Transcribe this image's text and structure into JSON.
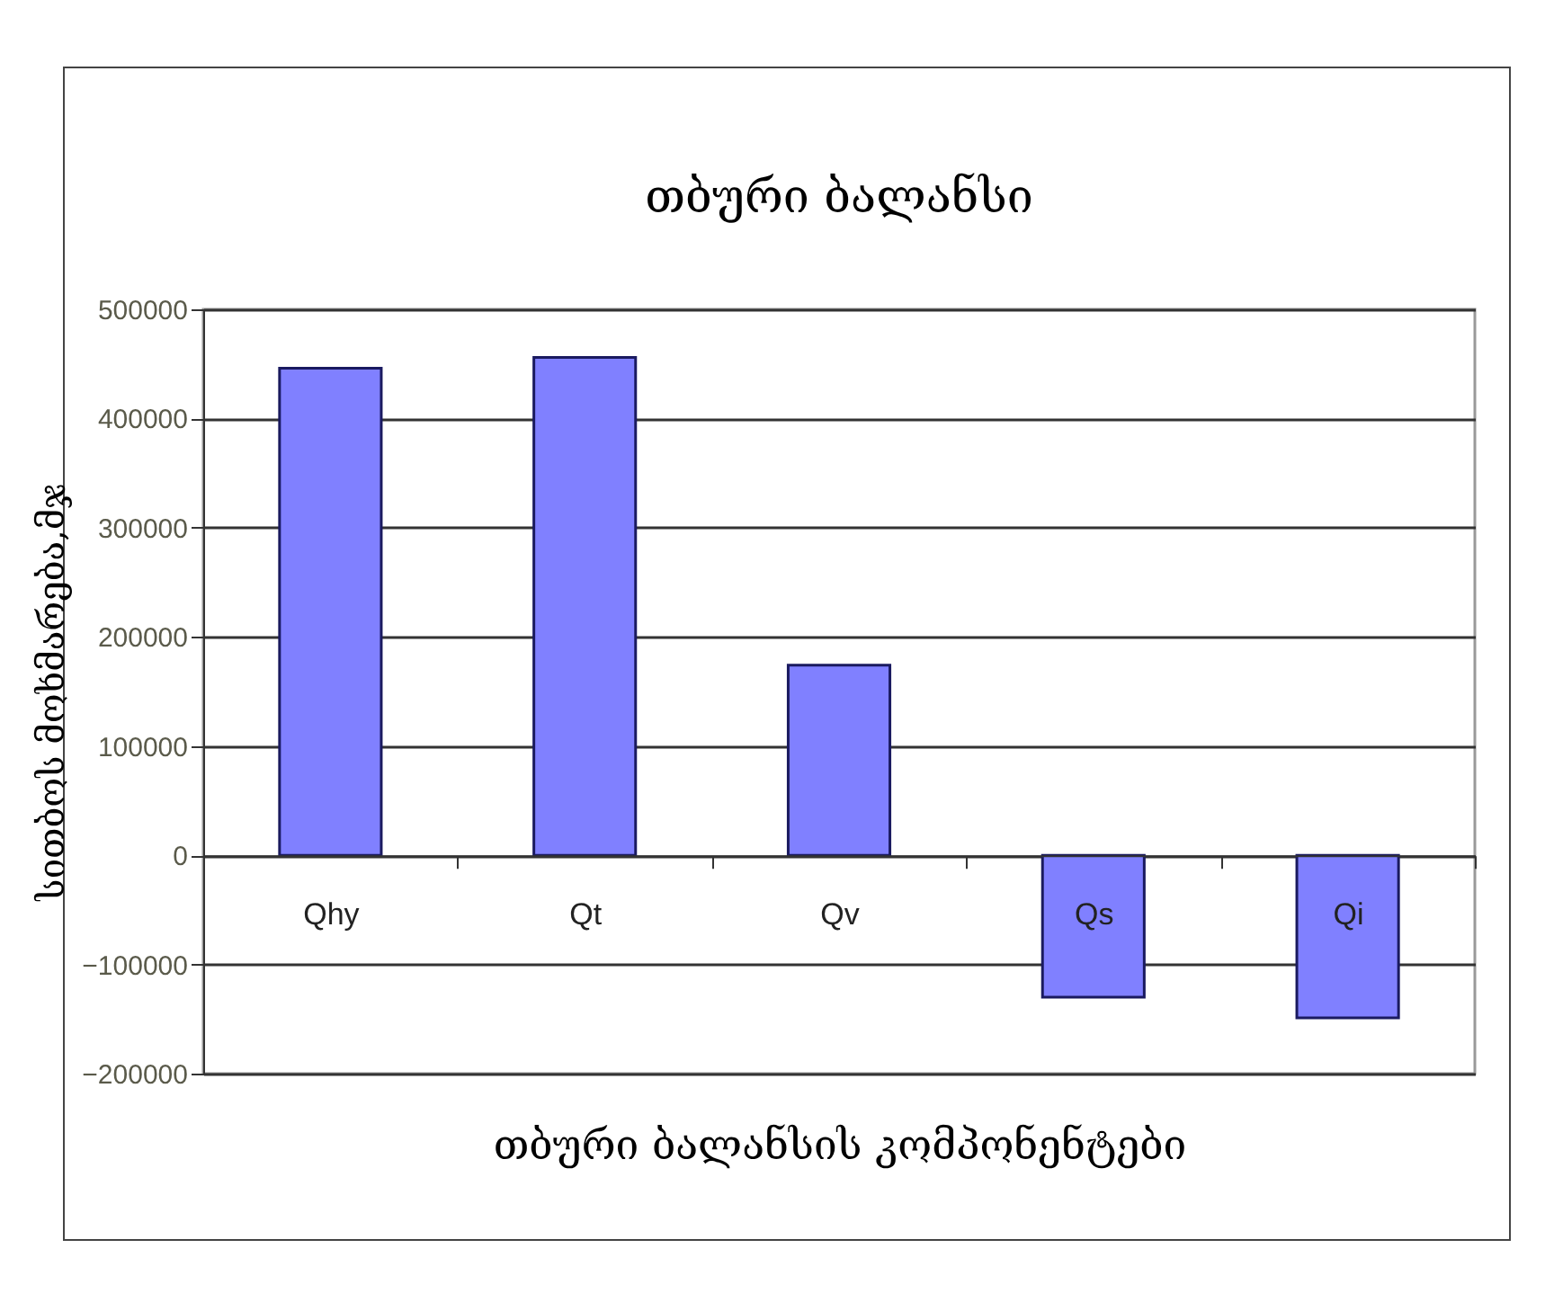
{
  "chart_data": {
    "type": "bar",
    "title": "თბური ბალანსი",
    "xlabel": "თბური ბალანსის კომპონენტები",
    "ylabel": "სითბოს მოხმარება,მჯ",
    "categories": [
      "Qhy",
      "Qt",
      "Qv",
      "Qs",
      "Qi"
    ],
    "values": [
      446000,
      456000,
      174000,
      -130000,
      -149000
    ],
    "color": "#8080ff",
    "ylim": [
      -200000,
      500000
    ],
    "yticks": [
      -200000,
      -100000,
      0,
      100000,
      200000,
      300000,
      400000,
      500000
    ],
    "grid": "y"
  }
}
